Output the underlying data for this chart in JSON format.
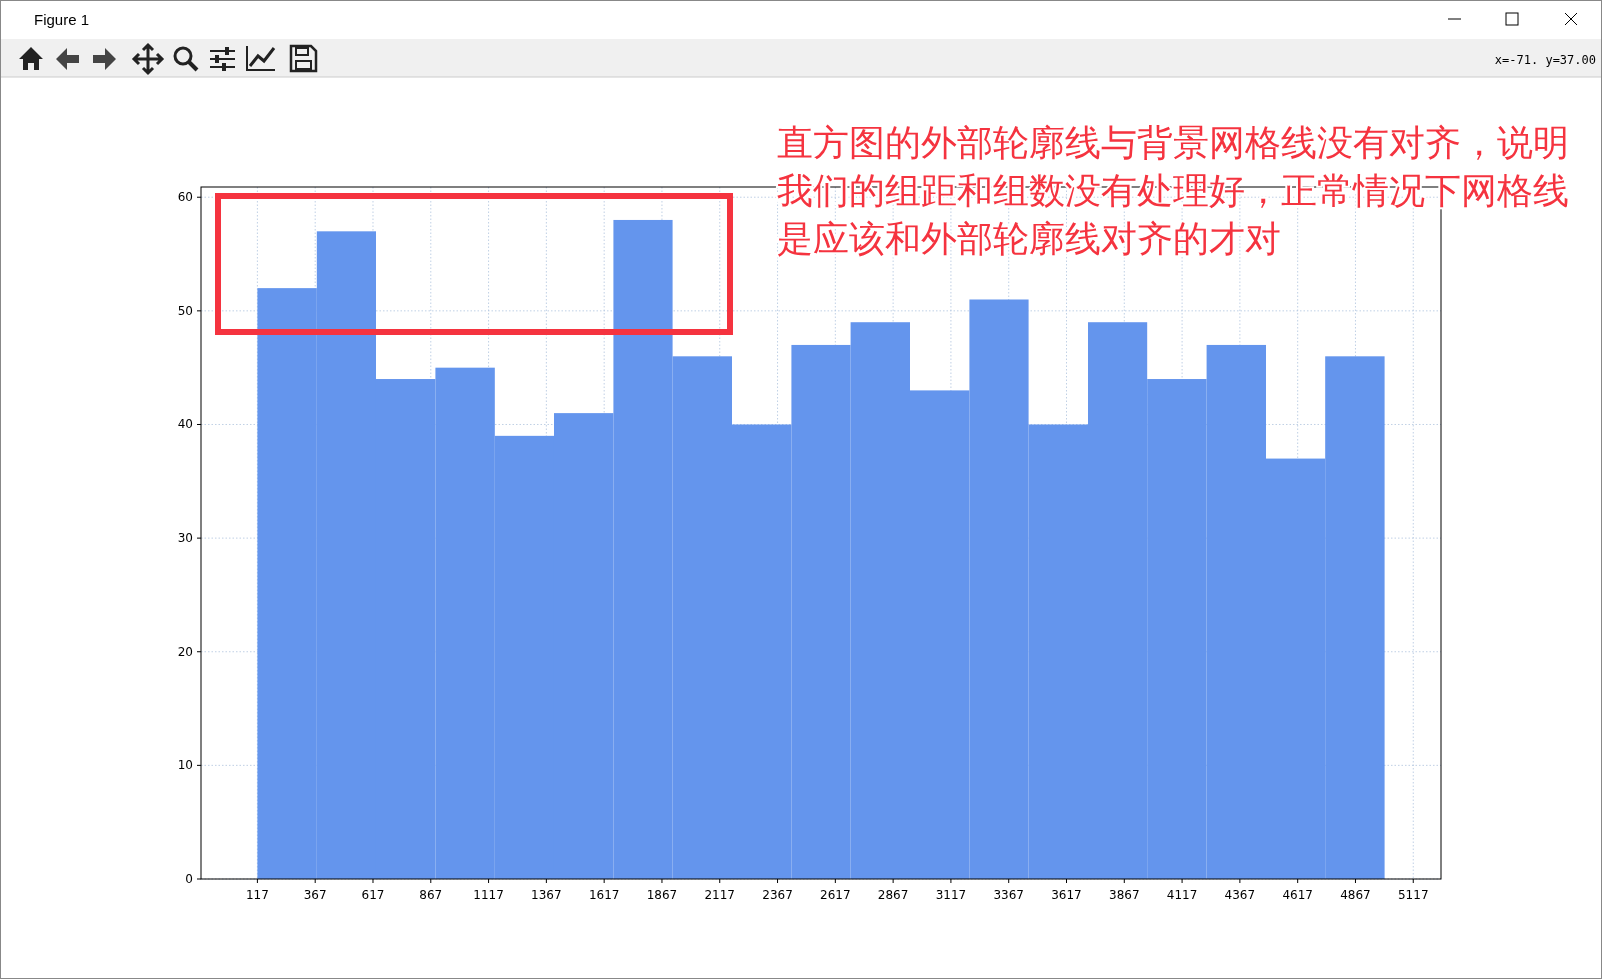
{
  "chart_data": {
    "type": "histogram",
    "bins": [
      117,
      374,
      630,
      887,
      1144,
      1400,
      1657,
      1913,
      2170,
      2427,
      2683,
      2940,
      3197,
      3453,
      3710,
      3966,
      4223,
      4480,
      4736,
      4993
    ],
    "values": [
      52,
      57,
      44,
      45,
      39,
      41,
      58,
      46,
      40,
      47,
      49,
      43,
      51,
      40,
      49,
      44,
      47,
      37,
      46
    ],
    "color": "#6495ed",
    "xlim": [
      -127,
      5237
    ],
    "xticks": [
      117,
      367,
      617,
      867,
      1117,
      1367,
      1617,
      1867,
      2117,
      2367,
      2617,
      2867,
      3117,
      3367,
      3617,
      3867,
      4117,
      4367,
      4617,
      4867,
      5117
    ],
    "ylim": [
      0,
      60.9
    ],
    "yticks": [
      0,
      10,
      20,
      30,
      40,
      50,
      60
    ],
    "grid": true,
    "line_style": "dotted",
    "annotations": [
      "Figure 1",
      "x=-71. y=37.00",
      "直方图的外部轮廓线与背景网格线没有对齐，说明我们的组距和组数没有处理好，正常情况下网格线是应该和外部轮廓线对齐的才对"
    ]
  }
}
